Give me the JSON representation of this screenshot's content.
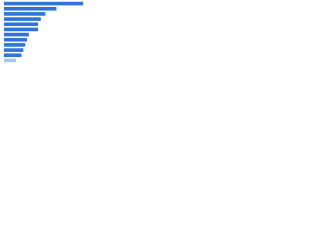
{
  "chart_data": {
    "type": "bar",
    "orientation": "horizontal",
    "categories": [
      null,
      null,
      null,
      null,
      null,
      null,
      null,
      null,
      null,
      null,
      null,
      null
    ],
    "values": [
      86,
      57,
      45,
      40,
      37,
      37,
      27,
      25,
      23,
      21,
      19,
      13
    ],
    "colors": [
      "#2e75d6",
      "#2e75d6",
      "#2e75d6",
      "#2e75d6",
      "#2e75d6",
      "#2e75d6",
      "#2e75d6",
      "#2e75d6",
      "#2e75d6",
      "#2e75d6",
      "#2e75d6",
      "#a9c6ef"
    ],
    "xlim": [
      0,
      100
    ]
  }
}
